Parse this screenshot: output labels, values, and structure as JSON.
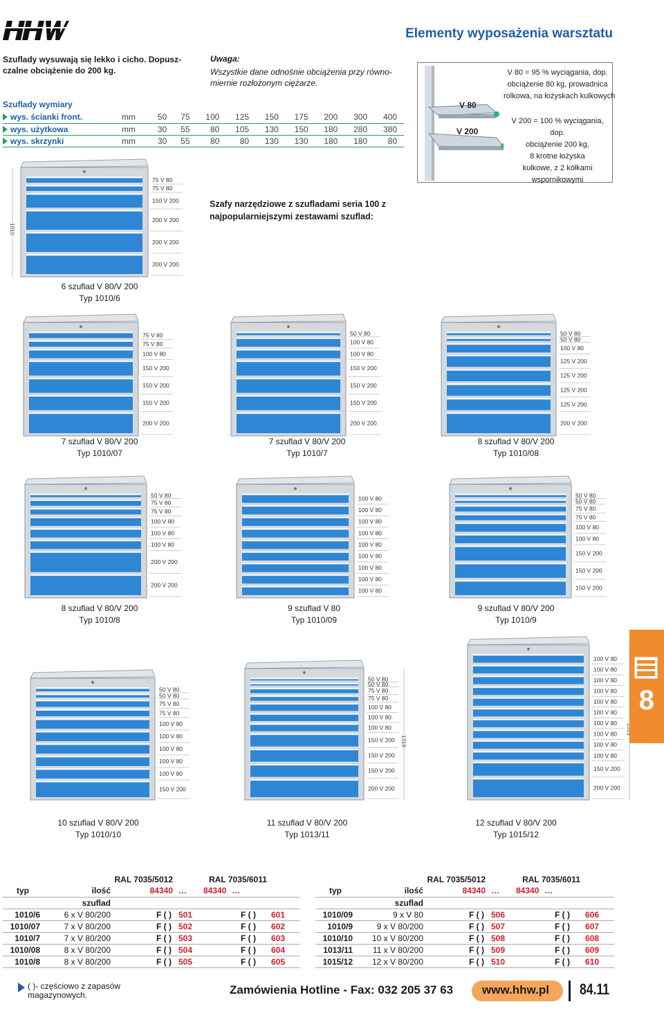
{
  "header": {
    "title": "Elementy wyposażenia warsztatu"
  },
  "intro": {
    "line1": "Szuflady wysuwają się lekko i cicho. Dopusz-",
    "line2": "czalne obciążenie do 200 kg."
  },
  "note": {
    "head": "Uwaga:",
    "line1": "Wszystkie dane odnośnie obciążenia przy równo-",
    "line2": "miernie rozłożonym ciężarze."
  },
  "dims": {
    "title": "Szuflady wymiary",
    "rows": [
      {
        "label": "wys. ścianki front.",
        "unit": "mm",
        "values": [
          "50",
          "75",
          "100",
          "125",
          "150",
          "175",
          "200",
          "300",
          "400"
        ]
      },
      {
        "label": "wys. użytkowa",
        "unit": "mm",
        "values": [
          "30",
          "55",
          "80",
          "105",
          "130",
          "150",
          "180",
          "280",
          "380"
        ]
      },
      {
        "label": "wys. skrzynki",
        "unit": "mm",
        "values": [
          "30",
          "55",
          "80",
          "80",
          "130",
          "130",
          "180",
          "180",
          "80"
        ]
      }
    ]
  },
  "slides": {
    "v80": "V 80",
    "v200": "V 200",
    "desc80": [
      "V 80 = 95 % wyciągania, dop.",
      "obciążenie 80 kg, prowadnica",
      "rolkowa, na łożyskach kulkowych"
    ],
    "desc200": [
      "V 200 = 100 % wyciągania, dop.",
      "obciążenie 200 kg,",
      "8 krotne łożyska",
      "kulkowe, z 2 kółkami",
      "wspornikowymi"
    ]
  },
  "subtitle": {
    "line1": "Szafy narzędziowe z szufladami seria 100 z",
    "line2": "najpopularniejszymi zestawami szuflad:"
  },
  "cabinets": [
    {
      "line1": "6 szuflad V 80/V 200",
      "line2": "Typ 1010/6",
      "height_tag": "1010",
      "fronts": [
        "75 V 80",
        "75 V 80",
        "150 V 200",
        "200 V 200",
        "200 V 200",
        "200 V 200"
      ],
      "heights": [
        75,
        75,
        150,
        200,
        200,
        200
      ]
    },
    {
      "line1": "7 szuflad V 80/V 200",
      "line2": "Typ 1010/07",
      "height_tag": "",
      "fronts": [
        "75 V 80",
        "75 V 80",
        "100 V 80",
        "150 V 200",
        "150 V 200",
        "150 V 200",
        "200 V 200"
      ],
      "heights": [
        75,
        75,
        100,
        150,
        150,
        150,
        200
      ]
    },
    {
      "line1": "7 szuflad V 80/V 200",
      "line2": "Typ 1010/7",
      "height_tag": "",
      "fronts": [
        "50 V 80",
        "100 V 80",
        "100 V 80",
        "150 V 200",
        "150 V 200",
        "150 V 200",
        "200 V 200"
      ],
      "heights": [
        50,
        100,
        100,
        150,
        150,
        150,
        200
      ]
    },
    {
      "line1": "8 szuflad V 80/V 200",
      "line2": "Typ 1010/08",
      "height_tag": "",
      "fronts": [
        "50 V 80",
        "50 V 80",
        "100 V 80",
        "125 V 200",
        "125 V 200",
        "125 V 200",
        "125 V 200",
        "200 V 200"
      ],
      "heights": [
        50,
        50,
        100,
        125,
        125,
        125,
        125,
        200
      ]
    },
    {
      "line1": "8 szuflad V 80/V 200",
      "line2": "Typ 1010/8",
      "height_tag": "",
      "fronts": [
        "50 V 80",
        "75 V 80",
        "75 V 80",
        "100 V 80",
        "100 V 80",
        "100 V 80",
        "200 V 200",
        "200 V 200"
      ],
      "heights": [
        50,
        75,
        75,
        100,
        100,
        100,
        200,
        200
      ]
    },
    {
      "line1": "9 szuflad V 80",
      "line2": "Typ 1010/09",
      "height_tag": "",
      "fronts": [
        "100 V 80",
        "100 V 80",
        "100 V 80",
        "100 V 80",
        "100 V 80",
        "100 V 80",
        "100 V 80",
        "100 V 80",
        "100 V 80"
      ],
      "heights": [
        100,
        100,
        100,
        100,
        100,
        100,
        100,
        100,
        100
      ]
    },
    {
      "line1": "9 szuflad V 80/V 200",
      "line2": "Typ 1010/9",
      "height_tag": "",
      "fronts": [
        "50 V 80",
        "50 V 80",
        "75 V 80",
        "75 V 80",
        "100 V 80",
        "100 V 80",
        "150 V 200",
        "150 V 200",
        "150 V 200"
      ],
      "heights": [
        50,
        50,
        75,
        75,
        100,
        100,
        150,
        150,
        150
      ]
    },
    {
      "line1": "10 szuflad V 80/V 200",
      "line2": "Typ 1010/10",
      "height_tag": "",
      "fronts": [
        "50 V 80",
        "50 V 80",
        "75 V 80",
        "75 V 80",
        "100 V 80",
        "100 V 80",
        "100 V 80",
        "100 V 80",
        "100 V 80",
        "150 V 200"
      ],
      "heights": [
        50,
        50,
        75,
        75,
        100,
        100,
        100,
        100,
        100,
        150
      ]
    },
    {
      "line1": "11 szuflad V 80/V 200",
      "line2": "Typ 1013/11",
      "height_tag": "1319",
      "fronts": [
        "50 V 80",
        "50 V 80",
        "75 V 80",
        "75 V 80",
        "100 V 80",
        "100 V 80",
        "100 V 80",
        "150 V 200",
        "150 V 200",
        "150 V 200",
        "200 V 200"
      ],
      "heights": [
        50,
        50,
        75,
        75,
        100,
        100,
        100,
        150,
        150,
        150,
        200
      ]
    },
    {
      "line1": "12 szuflad V 80/V 200",
      "line2": "Typ 1015/12",
      "height_tag": "1519",
      "fronts": [
        "100 V 80",
        "100 V 80",
        "100 V 80",
        "100 V 80",
        "100 V 80",
        "100 V 80",
        "100 V 80",
        "100 V 80",
        "100 V 80",
        "100 V 80",
        "150 V 200",
        "200 V 200"
      ],
      "heights": [
        100,
        100,
        100,
        100,
        100,
        100,
        100,
        100,
        100,
        100,
        150,
        200
      ]
    }
  ],
  "price_tables": {
    "ral1": "RAL 7035/5012",
    "ral2": "RAL 7035/6011",
    "col_typ": "typ",
    "col_ilosc": "ilość",
    "col_szuflad": "szuflad",
    "code": "84340",
    "ellipsis": "…",
    "left": [
      {
        "typ": "1010/6",
        "ilosc": "6 x V 80/200",
        "f": "F ( )",
        "a": "501",
        "b": "601"
      },
      {
        "typ": "1010/07",
        "ilosc": "7 x V 80/200",
        "f": "F ( )",
        "a": "502",
        "b": "602"
      },
      {
        "typ": "1010/7",
        "ilosc": "7 x V 80/200",
        "f": "F ( )",
        "a": "503",
        "b": "603"
      },
      {
        "typ": "1010/08",
        "ilosc": "8 x V 80/200",
        "f": "F ( )",
        "a": "504",
        "b": "604"
      },
      {
        "typ": "1010/8",
        "ilosc": "8 x V 80/200",
        "f": "F ( )",
        "a": "505",
        "b": "605"
      }
    ],
    "right": [
      {
        "typ": "1010/09",
        "ilosc": "9 x V 80",
        "f": "F ( )",
        "a": "506",
        "b": "606"
      },
      {
        "typ": "1010/9",
        "ilosc": "9 x V 80/200",
        "f": "F ( )",
        "a": "507",
        "b": "607"
      },
      {
        "typ": "1010/10",
        "ilosc": "10 x V 80/200",
        "f": "F ( )",
        "a": "508",
        "b": "608"
      },
      {
        "typ": "1013/11",
        "ilosc": "11 x V 80/200",
        "f": "F ( )",
        "a": "509",
        "b": "609"
      },
      {
        "typ": "1015/12",
        "ilosc": "12 x V 80/200",
        "f": "F ( )",
        "a": "510",
        "b": "610"
      }
    ]
  },
  "footer": {
    "note1": "( )- częściowo z zapasów",
    "note2": "magazynowych.",
    "hotline": "Zamówienia Hotline - Fax: 032 205 37 63",
    "www": "www.hhw.pl",
    "page": "84.11"
  },
  "chapter": "8",
  "colors": {
    "blue": "#2f86d4",
    "green": "#1ea25a",
    "red": "#d0202a",
    "orange": "#f08c2e"
  }
}
